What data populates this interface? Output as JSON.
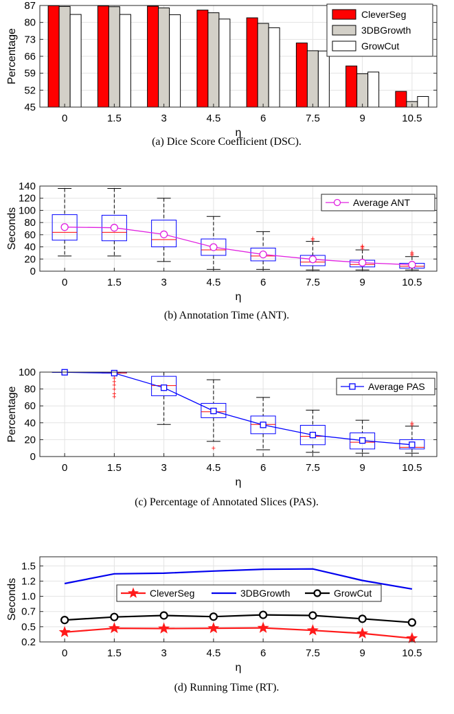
{
  "chart_data": [
    {
      "type": "bar",
      "caption": "(a) Dice Score Coefficient (DSC).",
      "xlabel": "η",
      "ylabel": "Percentage",
      "categories": [
        "0",
        "1.5",
        "3",
        "4.5",
        "6",
        "7.5",
        "9",
        "10.5"
      ],
      "ylim": [
        45,
        87
      ],
      "yticks": [
        "45",
        "52",
        "59",
        "66",
        "73",
        "80",
        "87"
      ],
      "grid": true,
      "legend_position": "top-right",
      "series": [
        {
          "name": "CleverSeg",
          "color": "#ff0000",
          "values": [
            86.9,
            86.8,
            86.7,
            85.1,
            81.9,
            71.5,
            62.0,
            51.5
          ]
        },
        {
          "name": "3DBGrowth",
          "color": "#d3d0c8",
          "values": [
            86.6,
            86.5,
            86.0,
            84.0,
            79.6,
            68.3,
            58.8,
            47.3
          ]
        },
        {
          "name": "GrowCut",
          "color": "#ffffff",
          "values": [
            83.3,
            83.3,
            83.2,
            81.4,
            77.8,
            68.2,
            59.5,
            49.4
          ]
        }
      ]
    },
    {
      "type": "box",
      "caption": "(b) Annotation Time (ANT).",
      "xlabel": "η",
      "ylabel": "Seconds",
      "categories": [
        "0",
        "1.5",
        "3",
        "4.5",
        "6",
        "7.5",
        "9",
        "10.5"
      ],
      "ylim": [
        0,
        140
      ],
      "yticks": [
        "0",
        "20",
        "40",
        "60",
        "80",
        "100",
        "120",
        "140"
      ],
      "grid": true,
      "legend_position": "top-right",
      "boxes": [
        {
          "min": 25,
          "q1": 51,
          "median": 64,
          "q3": 93,
          "max": 136,
          "outliers": []
        },
        {
          "min": 25,
          "q1": 50,
          "median": 64,
          "q3": 92,
          "max": 136,
          "outliers": []
        },
        {
          "min": 16,
          "q1": 40,
          "median": 52,
          "q3": 84,
          "max": 120,
          "outliers": []
        },
        {
          "min": 3,
          "q1": 26,
          "median": 35,
          "q3": 53,
          "max": 90,
          "outliers": []
        },
        {
          "min": 3,
          "q1": 17,
          "median": 25,
          "q3": 38,
          "max": 65,
          "outliers": []
        },
        {
          "min": 2,
          "q1": 9,
          "median": 15,
          "q3": 26,
          "max": 49,
          "outliers": [
            52,
            54
          ]
        },
        {
          "min": 2,
          "q1": 7,
          "median": 11,
          "q3": 18,
          "max": 35,
          "outliers": [
            38,
            40,
            42
          ]
        },
        {
          "min": 2,
          "q1": 5,
          "median": 8,
          "q3": 13,
          "max": 24,
          "outliers": [
            27,
            29,
            31
          ]
        }
      ],
      "line": {
        "name": "Average ANT",
        "color": "#e020e0",
        "values": [
          72.5,
          71.5,
          60.5,
          39.5,
          27.5,
          19.5,
          14.0,
          10.5
        ]
      }
    },
    {
      "type": "box",
      "caption": "(c) Percentage of Annotated Slices (PAS).",
      "xlabel": "η",
      "ylabel": "Percentage",
      "categories": [
        "0",
        "1.5",
        "3",
        "4.5",
        "6",
        "7.5",
        "9",
        "10.5"
      ],
      "ylim": [
        0,
        100
      ],
      "yticks": [
        "0",
        "20",
        "40",
        "60",
        "80",
        "100"
      ],
      "grid": true,
      "legend_position": "top-right",
      "boxes": [
        {
          "min": 100,
          "q1": 100,
          "median": 100,
          "q3": 100,
          "max": 100,
          "outliers": []
        },
        {
          "min": 99,
          "q1": 99,
          "median": 99,
          "q3": 100,
          "max": 100,
          "outliers": [
            71,
            75,
            80,
            85,
            89,
            93,
            97
          ]
        },
        {
          "min": 38,
          "q1": 72,
          "median": 84,
          "q3": 95,
          "max": 100,
          "outliers": []
        },
        {
          "min": 18,
          "q1": 46,
          "median": 53,
          "q3": 63,
          "max": 91,
          "outliers": [
            10
          ]
        },
        {
          "min": 8,
          "q1": 27,
          "median": 38,
          "q3": 48,
          "max": 70,
          "outliers": []
        },
        {
          "min": 5,
          "q1": 14,
          "median": 24,
          "q3": 37,
          "max": 55,
          "outliers": []
        },
        {
          "min": 4,
          "q1": 9,
          "median": 17,
          "q3": 28,
          "max": 43,
          "outliers": []
        },
        {
          "min": 4,
          "q1": 9,
          "median": 11,
          "q3": 20,
          "max": 36,
          "outliers": [
            38,
            40
          ]
        }
      ],
      "line": {
        "name": "Average PAS",
        "color": "#0000ff",
        "values": [
          99.8,
          98.8,
          81.5,
          54.0,
          37.5,
          25.5,
          19.0,
          14.0
        ]
      }
    },
    {
      "type": "line",
      "caption": "(d) Running Time (RT).",
      "xlabel": "η",
      "ylabel": "Seconds",
      "categories": [
        "0",
        "1.5",
        "3",
        "4.5",
        "6",
        "7.5",
        "9",
        "10.5"
      ],
      "ylim": [
        0.2,
        1.6
      ],
      "yticks": [
        "0.2",
        "0.5",
        "0.7",
        "1.0",
        "1.2",
        "1.5"
      ],
      "ytick_values": [
        0.2,
        0.45,
        0.7,
        0.95,
        1.2,
        1.45
      ],
      "grid": true,
      "legend_position": "center (horizontal)",
      "series": [
        {
          "name": "CleverSeg",
          "color": "#ff1a1a",
          "marker": "star",
          "values": [
            0.36,
            0.425,
            0.42,
            0.425,
            0.43,
            0.39,
            0.34,
            0.26
          ]
        },
        {
          "name": "3DBGrowth",
          "color": "#0000ee",
          "marker": "none",
          "values": [
            1.16,
            1.32,
            1.33,
            1.365,
            1.395,
            1.4,
            1.21,
            1.07
          ]
        },
        {
          "name": "GrowCut",
          "color": "#000000",
          "marker": "circle",
          "values": [
            0.56,
            0.61,
            0.635,
            0.615,
            0.645,
            0.635,
            0.58,
            0.52
          ]
        }
      ]
    }
  ]
}
